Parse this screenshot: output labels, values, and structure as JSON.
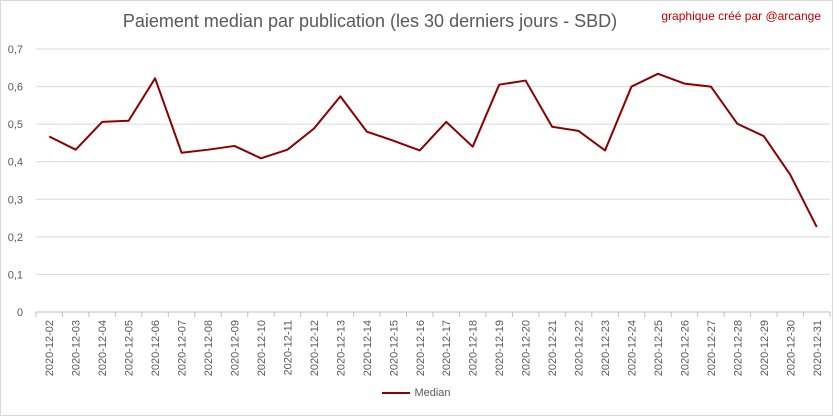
{
  "credit": "graphique créé par @arcange",
  "chart_data": {
    "type": "line",
    "title": "Paiement median par publication (les 30 derniers jours - SBD)",
    "xlabel": "",
    "ylabel": "",
    "ylim": [
      0,
      0.7
    ],
    "yticks": [
      0,
      0.1,
      0.2,
      0.3,
      0.4,
      0.5,
      0.6,
      0.7
    ],
    "ytick_labels": [
      "0",
      "0,1",
      "0,2",
      "0,3",
      "0,4",
      "0,5",
      "0,6",
      "0,7"
    ],
    "grid": true,
    "legend_position": "bottom",
    "categories": [
      "2020-12-02",
      "2020-12-03",
      "2020-12-04",
      "2020-12-05",
      "2020-12-06",
      "2020-12-07",
      "2020-12-08",
      "2020-12-09",
      "2020-12-10",
      "2020-12-11",
      "2020-12-12",
      "2020-12-13",
      "2020-12-14",
      "2020-12-15",
      "2020-12-16",
      "2020-12-17",
      "2020-12-18",
      "2020-12-19",
      "2020-12-20",
      "2020-12-21",
      "2020-12-22",
      "2020-12-23",
      "2020-12-24",
      "2020-12-25",
      "2020-12-26",
      "2020-12-27",
      "2020-12-28",
      "2020-12-29",
      "2020-12-30",
      "2020-12-31"
    ],
    "series": [
      {
        "name": "Median",
        "color": "#8b0000",
        "values": [
          0.467,
          0.432,
          0.506,
          0.509,
          0.622,
          0.424,
          0.432,
          0.442,
          0.409,
          0.432,
          0.488,
          0.574,
          0.48,
          0.456,
          0.43,
          0.506,
          0.44,
          0.605,
          0.616,
          0.493,
          0.482,
          0.43,
          0.6,
          0.634,
          0.608,
          0.6,
          0.501,
          0.468,
          0.365,
          0.226
        ]
      }
    ]
  }
}
